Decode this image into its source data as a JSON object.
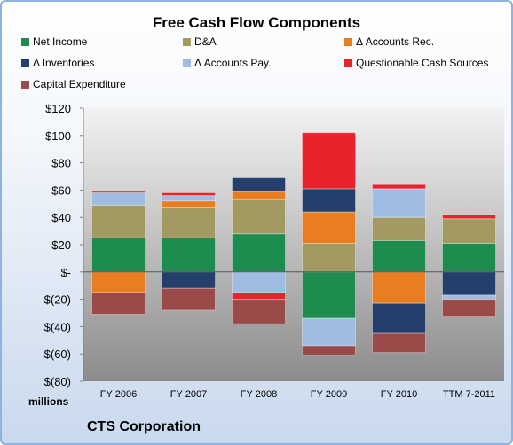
{
  "chart_data": {
    "type": "bar",
    "stacked": true,
    "title": "Free Cash Flow Components",
    "unit_label": "millions",
    "company": "CTS Corporation",
    "categories": [
      "FY 2006",
      "FY 2007",
      "FY 2008",
      "FY 2009",
      "FY 2010",
      "TTM 7-2011"
    ],
    "ylim": [
      -80,
      120
    ],
    "yticks": [
      -80,
      -60,
      -40,
      -20,
      0,
      20,
      40,
      60,
      80,
      100,
      120
    ],
    "ytick_labels": [
      "$(80)",
      "$(60)",
      "$(40)",
      "$(20)",
      "$-",
      "$20",
      "$40",
      "$60",
      "$80",
      "$100",
      "$120"
    ],
    "legend_position": "top",
    "series": [
      {
        "name": "Net Income",
        "color": "#1f8c4f",
        "values": [
          25,
          25,
          28,
          -34,
          23,
          21
        ]
      },
      {
        "name": "D&A",
        "color": "#a39a63",
        "values": [
          24,
          22,
          25,
          21,
          17,
          18
        ]
      },
      {
        "name": "Δ Accounts Rec.",
        "color": "#e97d22",
        "values": [
          -15,
          5,
          6,
          23,
          -23,
          0
        ]
      },
      {
        "name": "Δ Inventories",
        "color": "#243f6b",
        "values": [
          0,
          -12,
          10,
          17,
          -22,
          -17
        ]
      },
      {
        "name": "Δ Accounts Pay.",
        "color": "#9fbde3",
        "values": [
          9,
          4,
          -15,
          -20,
          21,
          -3
        ]
      },
      {
        "name": "Questionable Cash Sources",
        "color": "#e8232b",
        "values": [
          1,
          2,
          -5,
          41,
          3,
          3
        ]
      },
      {
        "name": "Capital Expenditure",
        "color": "#9b4a4a",
        "values": [
          -16,
          -16,
          -18,
          -7,
          -14,
          -13
        ]
      }
    ]
  }
}
